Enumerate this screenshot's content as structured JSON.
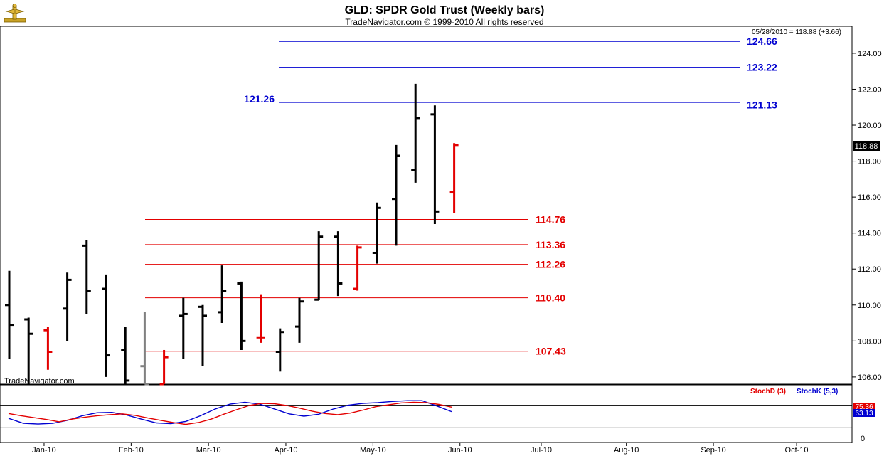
{
  "chart_data": {
    "type": "ohlc",
    "title": "GLD:  SPDR Gold Trust  (Weekly bars)",
    "subtitle": "TradeNavigator.com © 1999-2010 All rights reserved",
    "watermark": "TradeNavigator.com",
    "last_quote": "05/28/2010 = 118.88 (+3.66)",
    "last_price_label": "118.88",
    "ylim": [
      105.6,
      125.5
    ],
    "y_ticks": [
      "106.00",
      "108.00",
      "110.00",
      "112.00",
      "114.00",
      "116.00",
      "118.00",
      "120.00",
      "122.00",
      "124.00"
    ],
    "x_ticks": [
      "Jan-10",
      "Feb-10",
      "Mar-10",
      "Apr-10",
      "May-10",
      "Jun-10",
      "Jul-10",
      "Aug-10",
      "Sep-10",
      "Oct-10"
    ],
    "bars": [
      {
        "week": 1,
        "open": 110.0,
        "high": 111.9,
        "low": 107.0,
        "close": 108.9,
        "color": "#000000"
      },
      {
        "week": 2,
        "open": 109.2,
        "high": 109.3,
        "low": 105.6,
        "close": 108.4,
        "color": "#000000"
      },
      {
        "week": 3,
        "open": 108.6,
        "high": 108.8,
        "low": 106.4,
        "close": 107.4,
        "color": "#e30000"
      },
      {
        "week": 4,
        "open": 109.8,
        "high": 111.8,
        "low": 108.0,
        "close": 111.4,
        "color": "#000000"
      },
      {
        "week": 5,
        "open": 113.3,
        "high": 113.6,
        "low": 109.5,
        "close": 110.8,
        "color": "#000000"
      },
      {
        "week": 6,
        "open": 110.9,
        "high": 111.7,
        "low": 106.0,
        "close": 107.2,
        "color": "#000000"
      },
      {
        "week": 7,
        "open": 107.5,
        "high": 108.8,
        "low": 105.6,
        "close": 105.8,
        "color": "#000000"
      },
      {
        "week": 8,
        "open": 106.6,
        "high": 109.6,
        "low": 105.6,
        "close": 105.6,
        "color": "#808080"
      },
      {
        "week": 9,
        "open": 105.6,
        "high": 107.5,
        "low": 105.6,
        "close": 107.1,
        "color": "#e30000"
      },
      {
        "week": 10,
        "open": 109.4,
        "high": 110.4,
        "low": 107.0,
        "close": 109.5,
        "color": "#000000"
      },
      {
        "week": 11,
        "open": 109.9,
        "high": 110.0,
        "low": 106.6,
        "close": 109.4,
        "color": "#000000"
      },
      {
        "week": 12,
        "open": 109.6,
        "high": 112.2,
        "low": 109.0,
        "close": 110.8,
        "color": "#000000"
      },
      {
        "week": 13,
        "open": 111.2,
        "high": 111.3,
        "low": 107.5,
        "close": 108.0,
        "color": "#000000"
      },
      {
        "week": 14,
        "open": 108.2,
        "high": 110.6,
        "low": 107.9,
        "close": 108.2,
        "color": "#e30000"
      },
      {
        "week": 15,
        "open": 107.4,
        "high": 108.7,
        "low": 106.3,
        "close": 108.5,
        "color": "#000000"
      },
      {
        "week": 16,
        "open": 108.8,
        "high": 110.4,
        "low": 107.9,
        "close": 110.2,
        "color": "#000000"
      },
      {
        "week": 17,
        "open": 110.3,
        "high": 114.1,
        "low": 110.3,
        "close": 113.8,
        "color": "#000000"
      },
      {
        "week": 18,
        "open": 113.8,
        "high": 114.1,
        "low": 110.5,
        "close": 111.2,
        "color": "#000000"
      },
      {
        "week": 19,
        "open": 110.9,
        "high": 113.3,
        "low": 110.8,
        "close": 113.2,
        "color": "#e30000"
      },
      {
        "week": 20,
        "open": 112.9,
        "high": 115.7,
        "low": 112.3,
        "close": 115.4,
        "color": "#000000"
      },
      {
        "week": 21,
        "open": 115.9,
        "high": 118.9,
        "low": 113.3,
        "close": 118.3,
        "color": "#000000"
      },
      {
        "week": 22,
        "open": 117.5,
        "high": 122.3,
        "low": 116.8,
        "close": 120.4,
        "color": "#000000"
      },
      {
        "week": 23,
        "open": 120.6,
        "high": 121.1,
        "low": 114.5,
        "close": 115.2,
        "color": "#000000"
      },
      {
        "week": 24,
        "open": 116.3,
        "high": 119.0,
        "low": 115.1,
        "close": 118.9,
        "color": "#e30000"
      }
    ],
    "levels": [
      {
        "value": 124.66,
        "label": "124.66",
        "color": "#0000d0"
      },
      {
        "value": 123.22,
        "label": "123.22",
        "color": "#0000d0"
      },
      {
        "value": 121.26,
        "label": "121.26",
        "color": "#0000d0"
      },
      {
        "value": 121.13,
        "label": "121.13",
        "color": "#0000d0"
      },
      {
        "value": 114.76,
        "label": "114.76",
        "color": "#e30000"
      },
      {
        "value": 113.36,
        "label": "113.36",
        "color": "#e30000"
      },
      {
        "value": 112.26,
        "label": "112.26",
        "color": "#e30000"
      },
      {
        "value": 110.4,
        "label": "110.40",
        "color": "#e30000"
      },
      {
        "value": 107.43,
        "label": "107.43",
        "color": "#e30000"
      }
    ],
    "stochastic": {
      "stochd_label": "StochD (3)",
      "stochk_label": "StochK (5,3)",
      "stochd_value": "75.36",
      "stochk_value": "63.13",
      "zero_label": "0",
      "stochd": [
        58,
        52,
        47,
        42,
        36,
        43,
        48,
        52,
        55,
        57,
        53,
        46,
        40,
        34,
        29,
        34,
        43,
        56,
        68,
        79,
        85,
        84,
        79,
        72,
        64,
        58,
        55,
        59,
        67,
        76,
        81,
        86,
        88,
        87,
        82,
        75
      ],
      "stochk": [
        45,
        32,
        30,
        32,
        40,
        52,
        60,
        61,
        54,
        43,
        33,
        31,
        37,
        52,
        70,
        83,
        88,
        83,
        70,
        57,
        51,
        56,
        70,
        80,
        85,
        87,
        90,
        92,
        92,
        78,
        63
      ]
    }
  }
}
